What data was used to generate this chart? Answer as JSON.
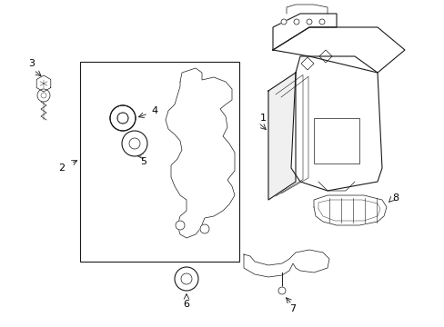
{
  "background_color": "#ffffff",
  "line_color": "#1a1a1a",
  "figsize": [
    4.89,
    3.6
  ],
  "dpi": 100,
  "lw": 0.8,
  "tlw": 0.5
}
